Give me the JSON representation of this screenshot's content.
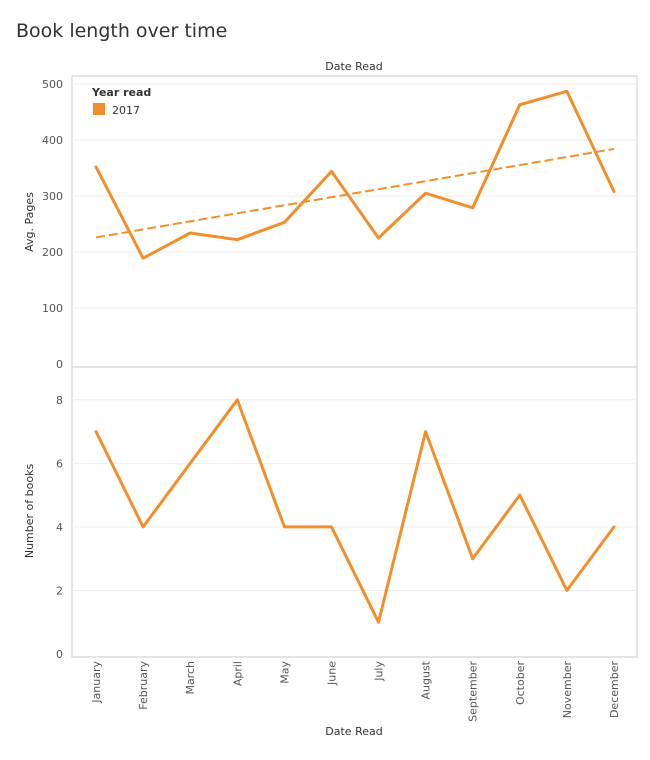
{
  "title": "Book length over time",
  "colors": {
    "series": "#F28E2B",
    "grid": "#EEEEEE",
    "axis": "#C8C8C8",
    "text": "#333333",
    "tick": "#555555"
  },
  "chart_data": [
    {
      "type": "line",
      "title": "Book length over time",
      "column_header": "Date Read",
      "xlabel": "Date Read",
      "ylabel": "Avg. Pages",
      "ylim": [
        0,
        500
      ],
      "yticks": [
        0,
        100,
        200,
        300,
        400,
        500
      ],
      "categories": [
        "January",
        "February",
        "March",
        "April",
        "May",
        "June",
        "July",
        "August",
        "September",
        "October",
        "November",
        "December"
      ],
      "legend": {
        "title": "Year read",
        "position": "top-left",
        "entries": [
          {
            "label": "2017",
            "color": "#F28E2B"
          }
        ]
      },
      "series": [
        {
          "name": "2017",
          "values": [
            352,
            189,
            234,
            222,
            253,
            344,
            225,
            305,
            279,
            463,
            487,
            308
          ]
        }
      ],
      "trend_line": {
        "style": "dashed",
        "start": 226,
        "end": 384
      }
    },
    {
      "type": "line",
      "xlabel": "Date Read",
      "ylabel": "Number of books",
      "ylim": [
        0,
        9
      ],
      "yticks": [
        0,
        2,
        4,
        6,
        8
      ],
      "categories": [
        "January",
        "February",
        "March",
        "April",
        "May",
        "June",
        "July",
        "August",
        "September",
        "October",
        "November",
        "December"
      ],
      "series": [
        {
          "name": "2017",
          "values": [
            7,
            4,
            6,
            8,
            4,
            4,
            1,
            7,
            3,
            5,
            2,
            4
          ]
        }
      ]
    }
  ]
}
